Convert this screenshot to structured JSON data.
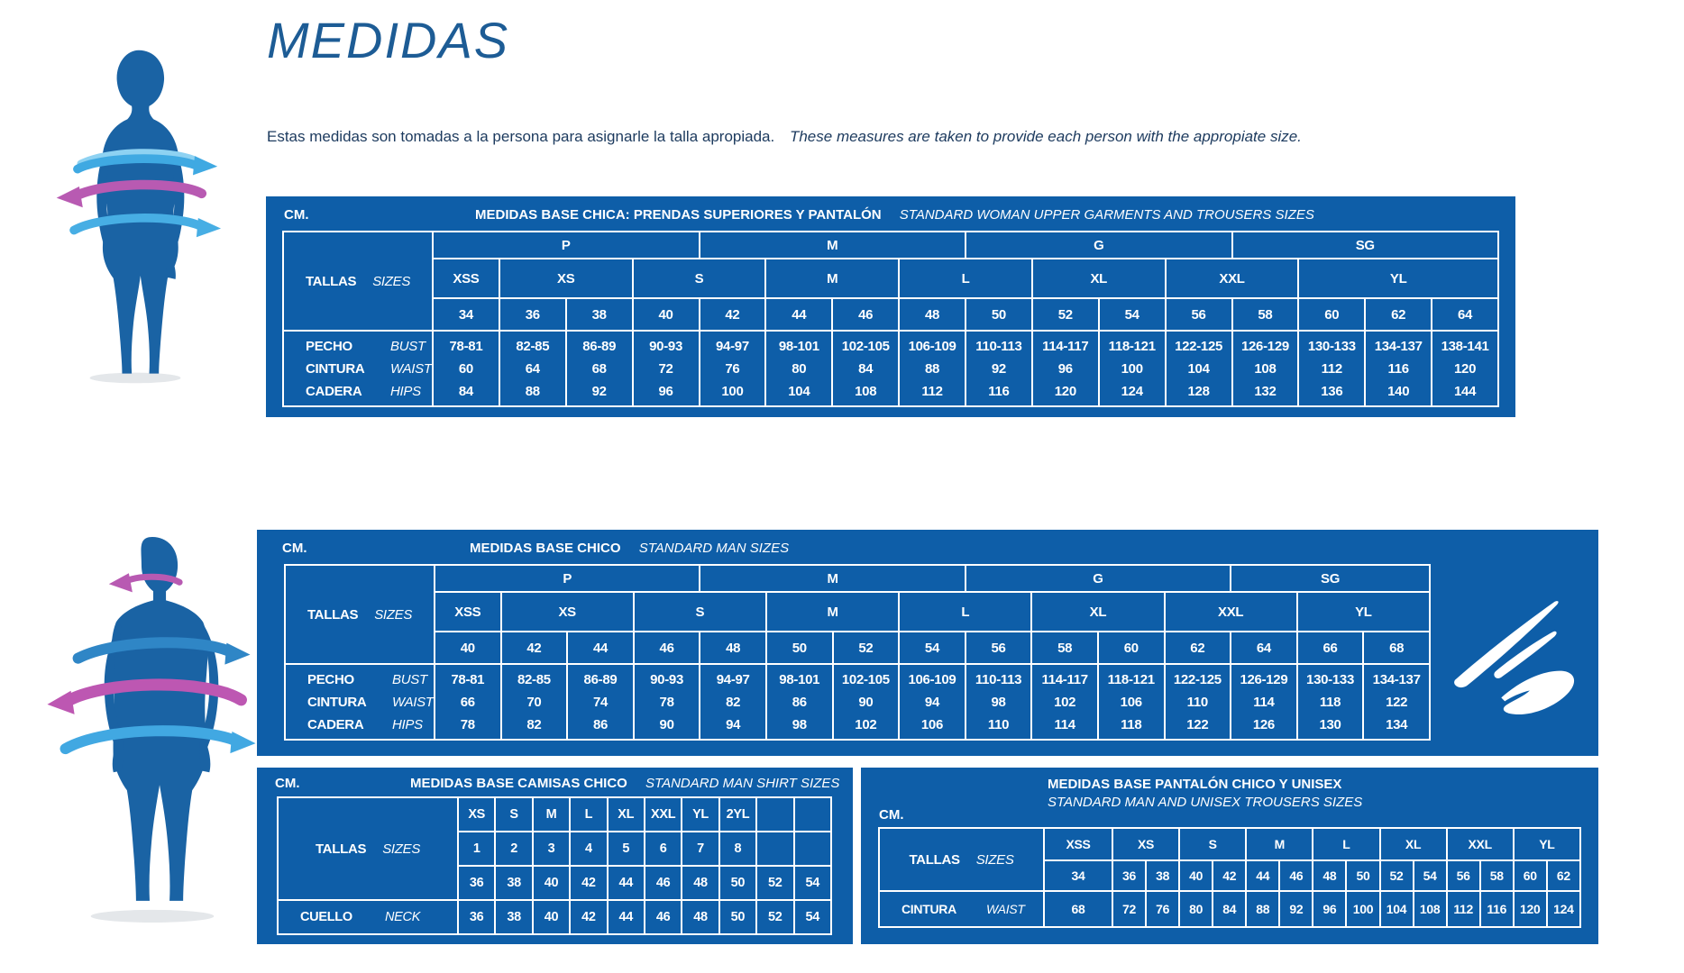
{
  "page": {
    "title": "MEDIDAS",
    "subtitle_es": "Estas medidas son tomadas a la persona para asignarle la talla apropiada.",
    "subtitle_en": "These measures are taken to provide each person with the appropiate size."
  },
  "colors": {
    "panel_blue": "#0e5ea8",
    "silhouette_blue": "#1a63a4",
    "title_blue": "#1d5c95",
    "ribbon_cyan": "#3fa9e2",
    "ribbon_pink": "#b85ab2",
    "ribbon_blue": "#2f86c6",
    "table_text": "#ffffff"
  },
  "icons": {
    "woman_figure": "woman-silhouette-with-measure-ribbons",
    "man_figure": "man-silhouette-with-measure-ribbons",
    "logo": "white-swoosh-logo"
  },
  "woman_table": {
    "unit": "CM.",
    "title_es": "MEDIDAS BASE CHICA: PRENDAS SUPERIORES Y PANTALÓN",
    "title_en": "STANDARD WOMAN UPPER GARMENTS AND TROUSERS SIZES",
    "tallas_label": "TALLAS",
    "sizes_label": "SIZES",
    "groups": [
      {
        "label": "P",
        "span": 4
      },
      {
        "label": "M",
        "span": 4
      },
      {
        "label": "G",
        "span": 4
      },
      {
        "label": "SG",
        "span": 4
      }
    ],
    "letters": [
      {
        "label": "XSS",
        "span": 1
      },
      {
        "label": "XS",
        "span": 2
      },
      {
        "label": "S",
        "span": 2
      },
      {
        "label": "M",
        "span": 2
      },
      {
        "label": "L",
        "span": 2
      },
      {
        "label": "XL",
        "span": 2
      },
      {
        "label": "XXL",
        "span": 2
      },
      {
        "label": "YL",
        "span": 3
      }
    ],
    "numbers": [
      "34",
      "36",
      "38",
      "40",
      "42",
      "44",
      "46",
      "48",
      "50",
      "52",
      "54",
      "56",
      "58",
      "60",
      "62",
      "64"
    ],
    "rows": [
      {
        "label_es": "PECHO",
        "label_en": "BUST",
        "values": [
          "78-81",
          "82-85",
          "86-89",
          "90-93",
          "94-97",
          "98-101",
          "102-105",
          "106-109",
          "110-113",
          "114-117",
          "118-121",
          "122-125",
          "126-129",
          "130-133",
          "134-137",
          "138-141"
        ]
      },
      {
        "label_es": "CINTURA",
        "label_en": "WAIST",
        "values": [
          "60",
          "64",
          "68",
          "72",
          "76",
          "80",
          "84",
          "88",
          "92",
          "96",
          "100",
          "104",
          "108",
          "112",
          "116",
          "120"
        ]
      },
      {
        "label_es": "CADERA",
        "label_en": "HIPS",
        "values": [
          "84",
          "88",
          "92",
          "96",
          "100",
          "104",
          "108",
          "112",
          "116",
          "120",
          "124",
          "128",
          "132",
          "136",
          "140",
          "144"
        ]
      }
    ]
  },
  "man_table": {
    "unit": "CM.",
    "title_es": "MEDIDAS BASE CHICO",
    "title_en": "STANDARD MAN SIZES",
    "tallas_label": "TALLAS",
    "sizes_label": "SIZES",
    "groups": [
      {
        "label": "P",
        "span": 4
      },
      {
        "label": "M",
        "span": 4
      },
      {
        "label": "G",
        "span": 4
      },
      {
        "label": "SG",
        "span": 3
      }
    ],
    "letters": [
      {
        "label": "XSS",
        "span": 1
      },
      {
        "label": "XS",
        "span": 2
      },
      {
        "label": "S",
        "span": 2
      },
      {
        "label": "M",
        "span": 2
      },
      {
        "label": "L",
        "span": 2
      },
      {
        "label": "XL",
        "span": 2
      },
      {
        "label": "XXL",
        "span": 2
      },
      {
        "label": "YL",
        "span": 2
      }
    ],
    "numbers": [
      "40",
      "42",
      "44",
      "46",
      "48",
      "50",
      "52",
      "54",
      "56",
      "58",
      "60",
      "62",
      "64",
      "66",
      "68"
    ],
    "rows": [
      {
        "label_es": "PECHO",
        "label_en": "BUST",
        "values": [
          "78-81",
          "82-85",
          "86-89",
          "90-93",
          "94-97",
          "98-101",
          "102-105",
          "106-109",
          "110-113",
          "114-117",
          "118-121",
          "122-125",
          "126-129",
          "130-133",
          "134-137"
        ]
      },
      {
        "label_es": "CINTURA",
        "label_en": "WAIST",
        "values": [
          "66",
          "70",
          "74",
          "78",
          "82",
          "86",
          "90",
          "94",
          "98",
          "102",
          "106",
          "110",
          "114",
          "118",
          "122"
        ]
      },
      {
        "label_es": "CADERA",
        "label_en": "HIPS",
        "values": [
          "78",
          "82",
          "86",
          "90",
          "94",
          "98",
          "102",
          "106",
          "110",
          "114",
          "118",
          "122",
          "126",
          "130",
          "134"
        ]
      }
    ]
  },
  "shirt_table": {
    "unit": "CM.",
    "title_es": "MEDIDAS BASE CAMISAS CHICO",
    "title_en": "STANDARD MAN SHIRT SIZES",
    "tallas_label": "TALLAS",
    "sizes_label": "SIZES",
    "letters": [
      "XS",
      "S",
      "M",
      "L",
      "XL",
      "XXL",
      "YL",
      "2YL",
      "",
      ""
    ],
    "codes": [
      "1",
      "2",
      "3",
      "4",
      "5",
      "6",
      "7",
      "8",
      "",
      ""
    ],
    "numbers": [
      "36",
      "38",
      "40",
      "42",
      "44",
      "46",
      "48",
      "50",
      "52",
      "54"
    ],
    "rows": [
      {
        "label_es": "CUELLO",
        "label_en": "NECK",
        "values": [
          "36",
          "38",
          "40",
          "42",
          "44",
          "46",
          "48",
          "50",
          "52",
          "54"
        ]
      }
    ]
  },
  "trouser_table": {
    "unit": "CM.",
    "title_es": "MEDIDAS BASE PANTALÓN CHICO Y UNISEX",
    "title_en": "STANDARD MAN AND UNISEX TROUSERS SIZES",
    "tallas_label": "TALLAS",
    "sizes_label": "SIZES",
    "letters": [
      {
        "label": "XSS",
        "span": 1
      },
      {
        "label": "XS",
        "span": 2
      },
      {
        "label": "S",
        "span": 2
      },
      {
        "label": "M",
        "span": 2
      },
      {
        "label": "L",
        "span": 2
      },
      {
        "label": "XL",
        "span": 2
      },
      {
        "label": "XXL",
        "span": 2
      },
      {
        "label": "YL",
        "span": 2
      }
    ],
    "numbers": [
      "34",
      "36",
      "38",
      "40",
      "42",
      "44",
      "46",
      "48",
      "50",
      "52",
      "54",
      "56",
      "58",
      "60",
      "62"
    ],
    "rows": [
      {
        "label_es": "CINTURA",
        "label_en": "WAIST",
        "values": [
          "68",
          "72",
          "76",
          "80",
          "84",
          "88",
          "92",
          "96",
          "100",
          "104",
          "108",
          "112",
          "116",
          "120",
          "124"
        ]
      }
    ]
  }
}
